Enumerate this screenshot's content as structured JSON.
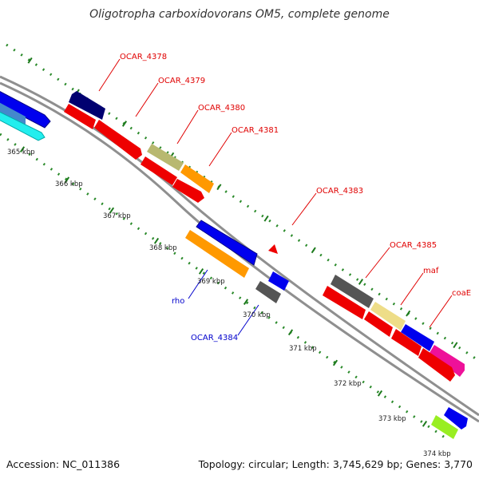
{
  "title": "Oligotropha carboxidovorans OM5, complete genome",
  "footer": {
    "accession": "Accession: NC_011386",
    "summary": "Topology: circular; Length: 3,745,629 bp; Genes: 3,770"
  },
  "colors": {
    "backbone": "#8a8a8a",
    "dots": "#2a8a2a",
    "ticks": "#1d7a1d",
    "forward_label": "#e00000",
    "reverse_label": "#0000cc",
    "red": "#ee0000",
    "blue": "#0000ee",
    "navy": "#000070",
    "olive": "#b8b870",
    "orange": "#ff9900",
    "gray": "#555555",
    "khaki": "#eedd88",
    "magenta": "#ee1199",
    "lime": "#99ee22",
    "cyan": "#22eeee",
    "steel": "#4488cc"
  },
  "kbp_labels": [
    "365 kbp",
    "366 kbp",
    "367 kbp",
    "368 kbp",
    "369 kbp",
    "370 kbp",
    "371 kbp",
    "372 kbp",
    "373 kbp",
    "374 kbp"
  ],
  "gene_labels": [
    {
      "text": "OCAR_4378",
      "strand": "forward"
    },
    {
      "text": "OCAR_4379",
      "strand": "forward"
    },
    {
      "text": "OCAR_4380",
      "strand": "forward"
    },
    {
      "text": "OCAR_4381",
      "strand": "forward"
    },
    {
      "text": "OCAR_4383",
      "strand": "forward"
    },
    {
      "text": "OCAR_4385",
      "strand": "forward"
    },
    {
      "text": "maf",
      "strand": "forward"
    },
    {
      "text": "coaE",
      "strand": "forward"
    },
    {
      "text": "rho",
      "strand": "reverse"
    },
    {
      "text": "OCAR_4384",
      "strand": "reverse"
    }
  ]
}
